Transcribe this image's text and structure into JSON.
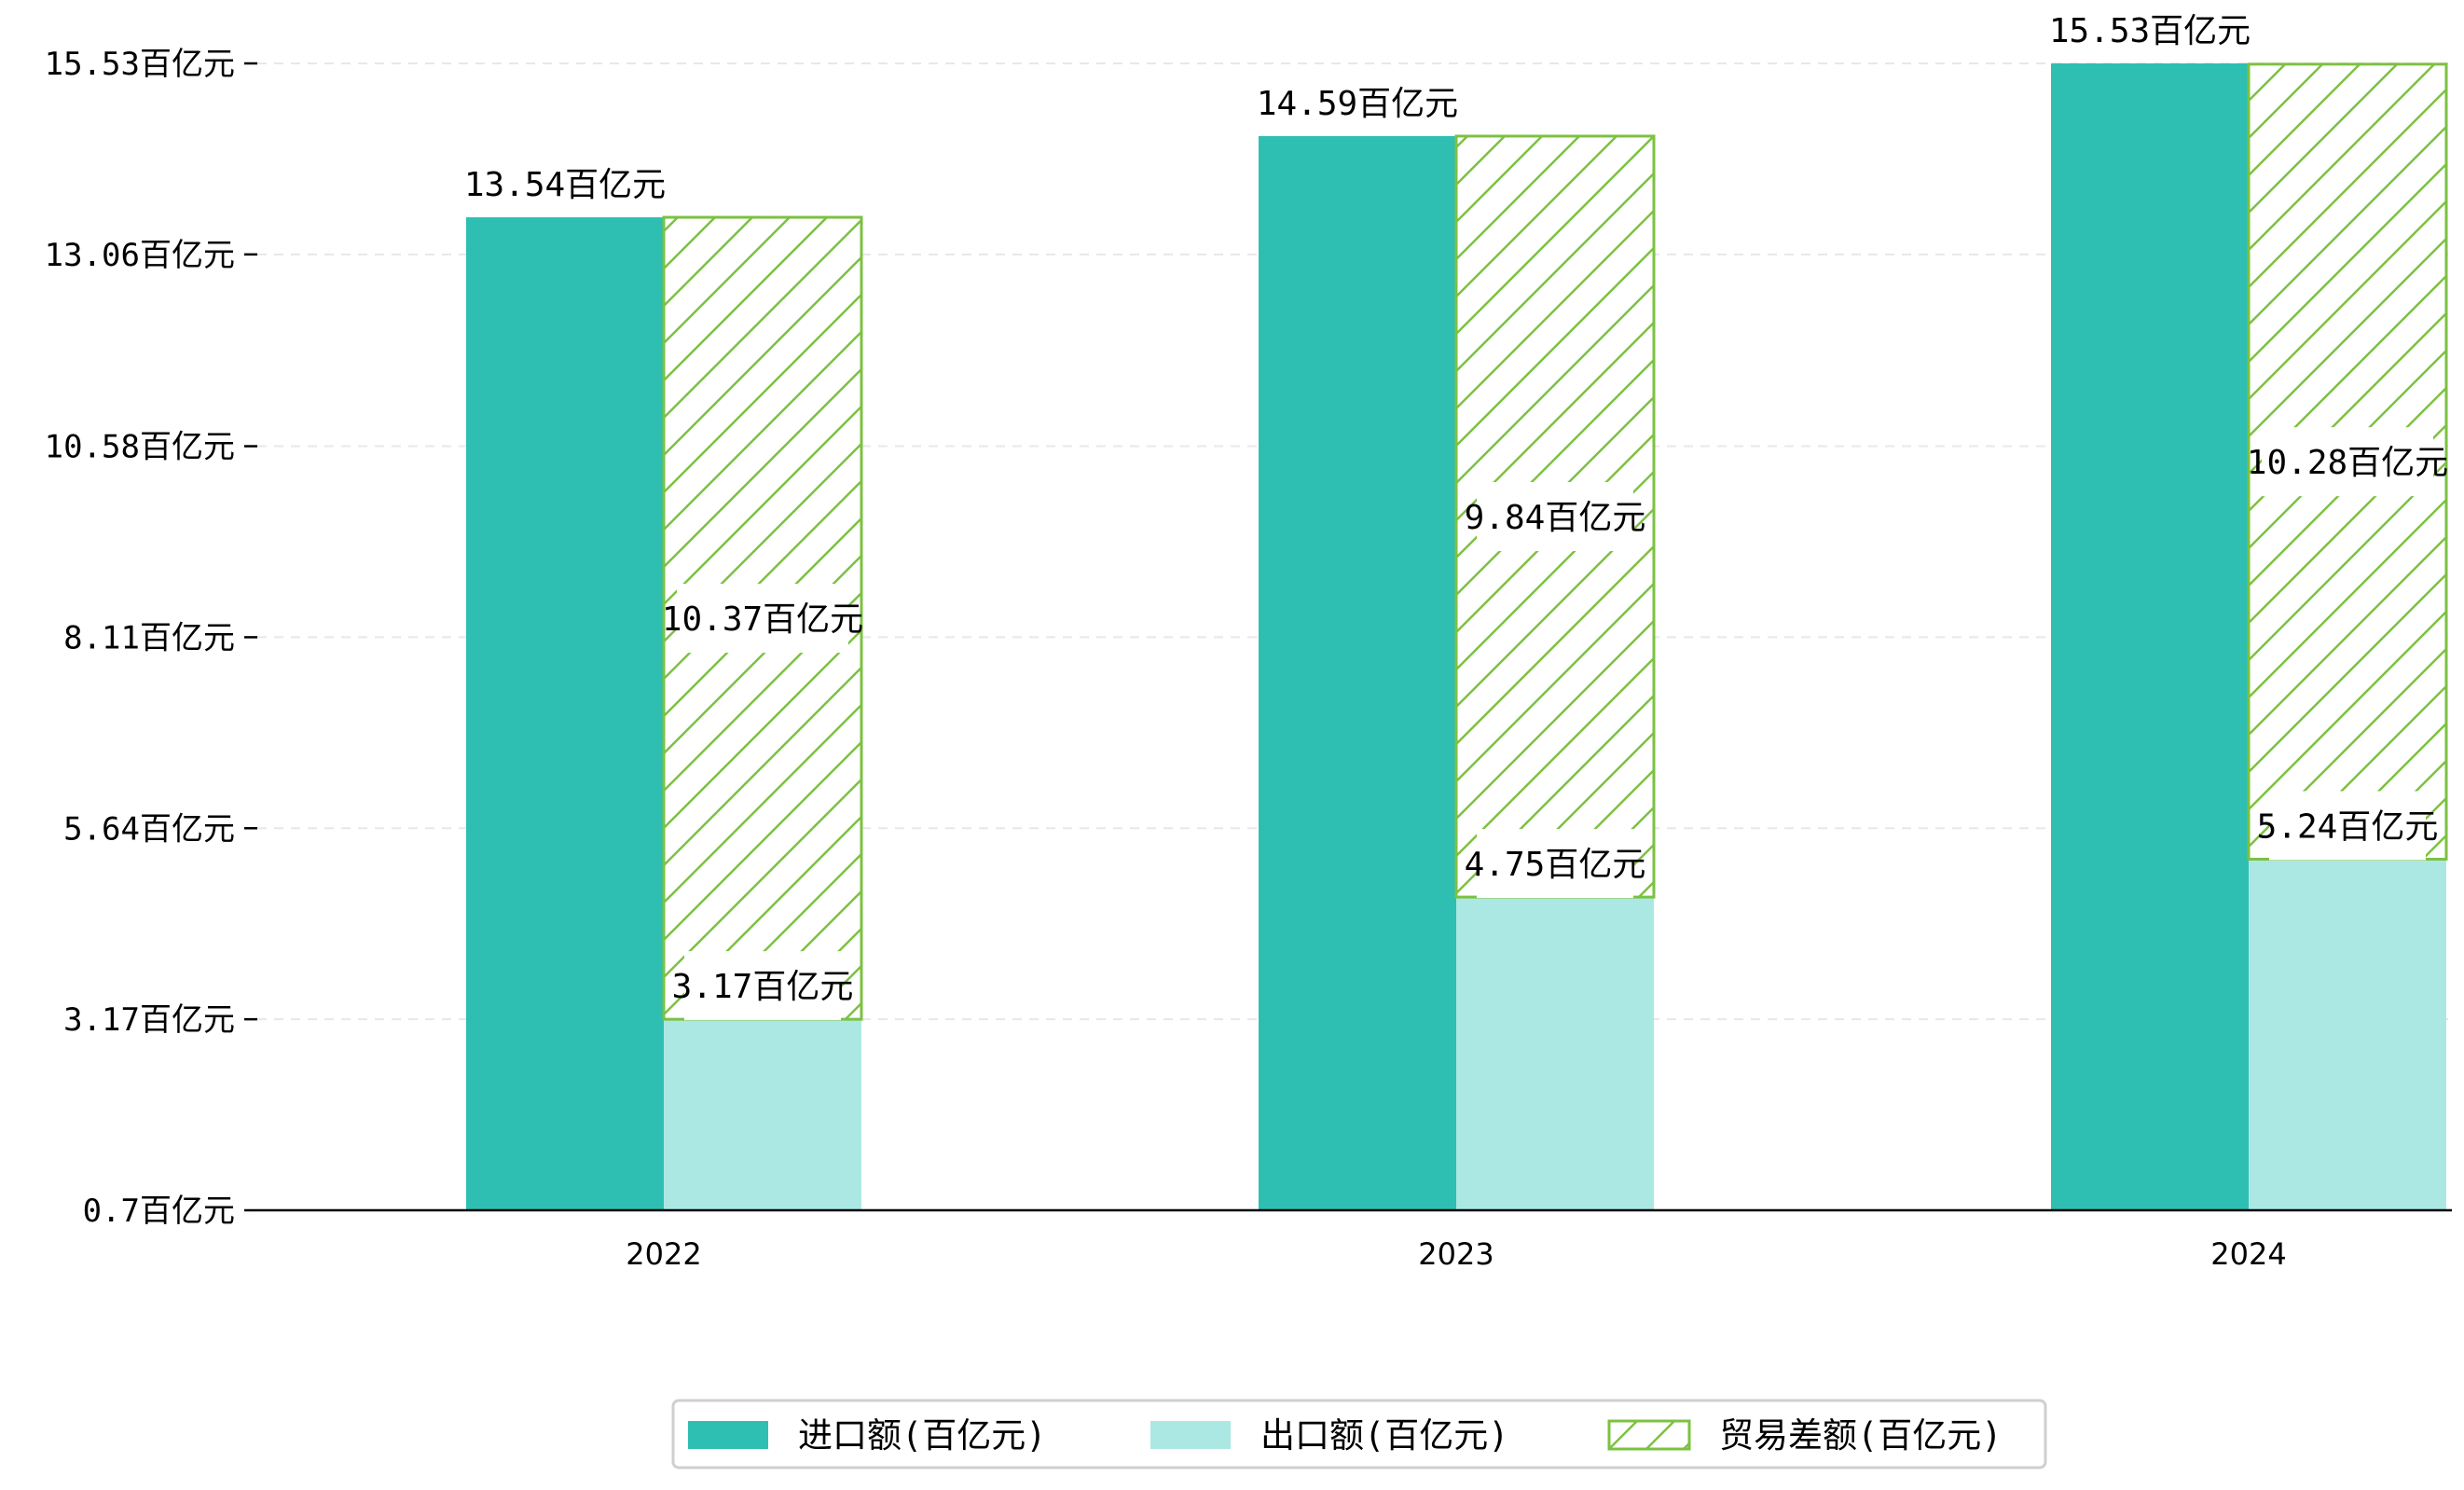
{
  "chart_data": {
    "type": "bar",
    "title": "",
    "xlabel": "",
    "ylabel": "",
    "categories": [
      "2022",
      "2023",
      "2024"
    ],
    "series": [
      {
        "name": "进口额(百亿元)",
        "values": [
          13.54,
          14.59,
          15.53
        ],
        "color": "#2ebfb2",
        "style": "solid"
      },
      {
        "name": "出口额(百亿元)",
        "values": [
          3.17,
          4.75,
          5.24
        ],
        "color": "#abe8e3",
        "style": "solid"
      },
      {
        "name": "贸易差额(百亿元)",
        "values": [
          10.37,
          9.84,
          10.28
        ],
        "base": [
          3.17,
          4.75,
          5.24
        ],
        "color": "#7cc142",
        "style": "hatched"
      }
    ],
    "data_labels": {
      "imports": [
        "13.54百亿元",
        "14.59百亿元",
        "15.53百亿元"
      ],
      "exports": [
        "3.17百亿元",
        "4.75百亿元",
        "5.24百亿元"
      ],
      "balance": [
        "10.37百亿元",
        "9.84百亿元",
        "10.28百亿元"
      ]
    },
    "yticks": [
      0.7,
      3.17,
      5.64,
      8.11,
      10.58,
      13.06,
      15.53
    ],
    "ytick_labels": [
      "0.7百亿元",
      "3.17百亿元",
      "5.64百亿元",
      "8.11百亿元",
      "10.58百亿元",
      "13.06百亿元",
      "15.53百亿元"
    ],
    "ylim": [
      0.7,
      15.53
    ],
    "grid": "horizontal-dashed",
    "legend": {
      "position": "bottom-center",
      "columns": 3
    }
  }
}
